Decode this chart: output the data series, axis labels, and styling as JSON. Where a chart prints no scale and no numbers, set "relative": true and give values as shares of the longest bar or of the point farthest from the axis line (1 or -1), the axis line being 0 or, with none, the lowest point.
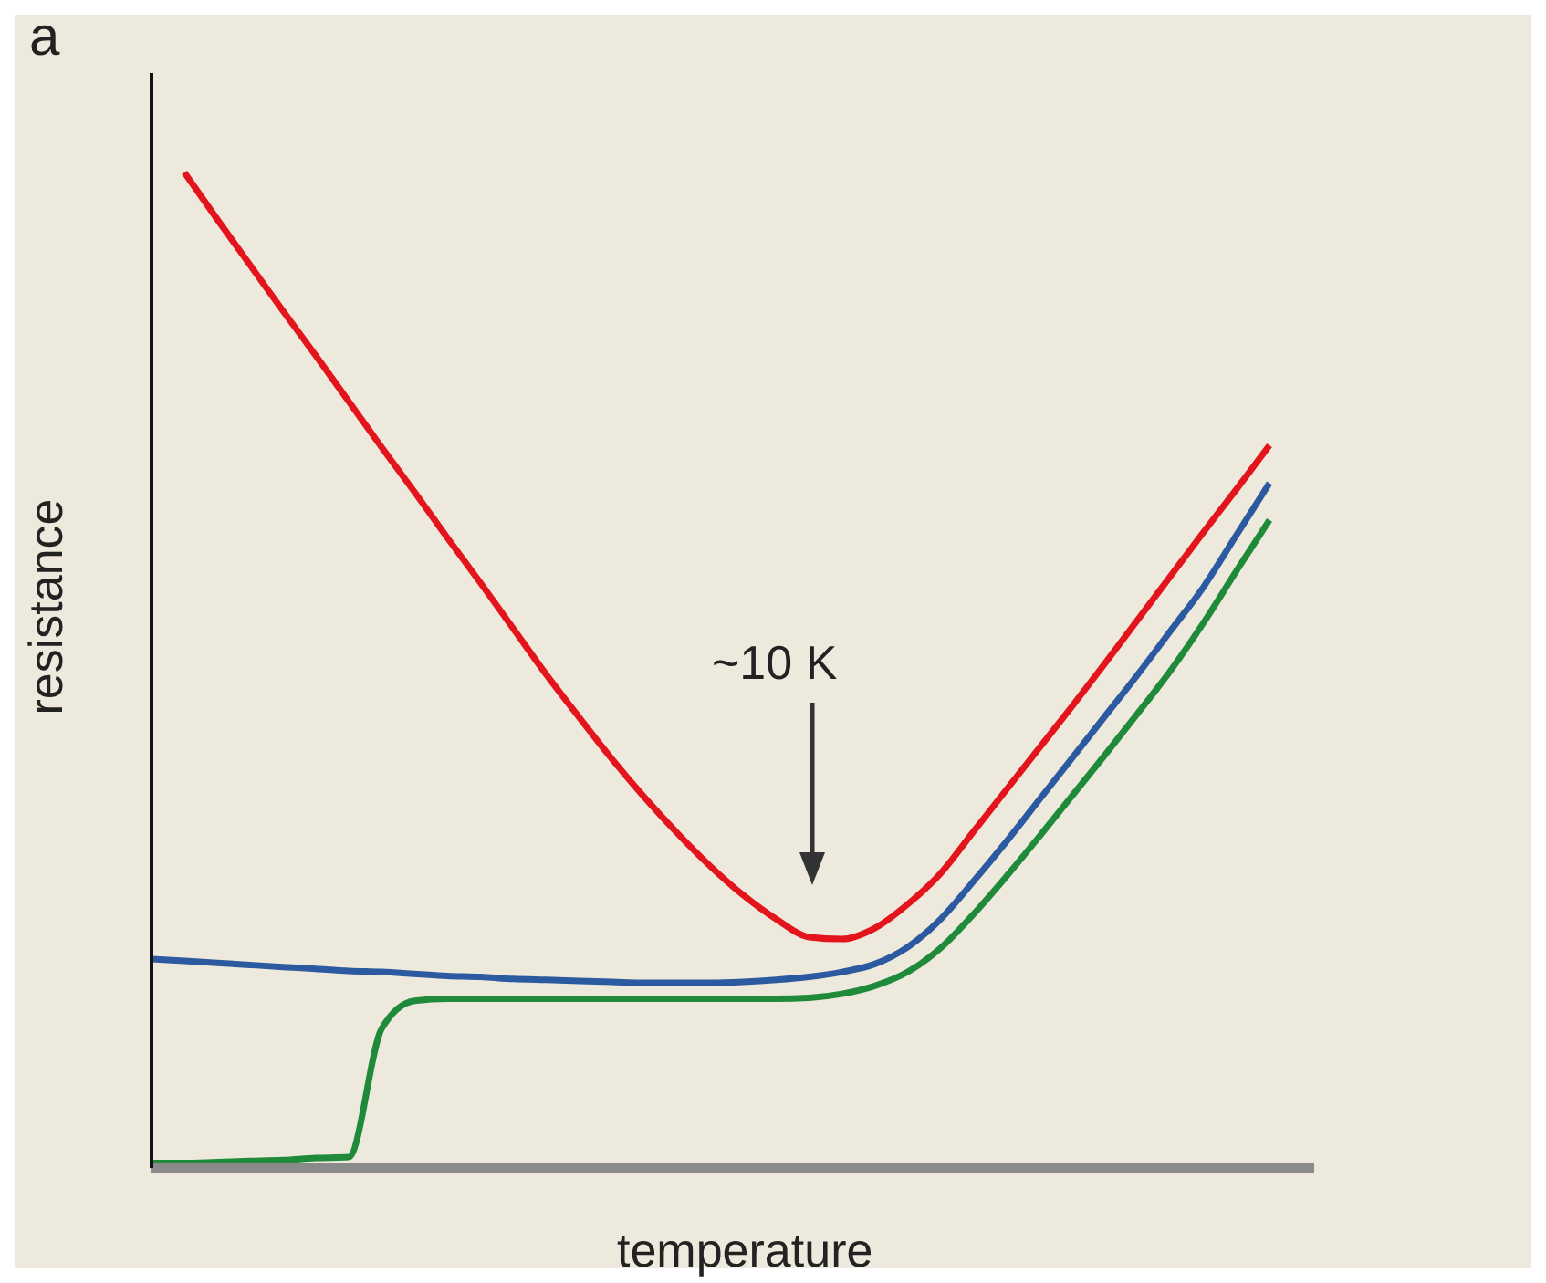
{
  "chart_data": {
    "type": "line",
    "relative": true,
    "title": "a",
    "xlabel": "temperature",
    "ylabel": "resistance",
    "annotations": [
      "~10 K"
    ],
    "categories": [
      null,
      null,
      null,
      null,
      null,
      null,
      null,
      null,
      null,
      null,
      null,
      null,
      null,
      null,
      null,
      null,
      null,
      null,
      null,
      null,
      null,
      null,
      null,
      null,
      null,
      null,
      null,
      null,
      null,
      null,
      null,
      null,
      null,
      null,
      null
    ],
    "series": [
      {
        "color": "#e3141c",
        "values": [
          null,
          1.0,
          0.953,
          0.907,
          0.861,
          0.816,
          0.77,
          0.724,
          0.679,
          0.633,
          0.588,
          0.542,
          0.496,
          0.453,
          0.411,
          0.372,
          0.336,
          0.303,
          0.274,
          0.25,
          0.232,
          0.23,
          0.241,
          0.265,
          0.296,
          0.338,
          0.38,
          0.422,
          0.464,
          0.507,
          0.551,
          0.595,
          0.639,
          0.682,
          0.726
        ]
      },
      {
        "color": "#2b5aa0",
        "values": [
          0.21,
          0.208,
          0.206,
          0.204,
          0.202,
          0.2,
          0.198,
          0.197,
          0.195,
          0.193,
          0.192,
          0.19,
          0.189,
          0.188,
          0.187,
          0.186,
          0.186,
          0.186,
          0.187,
          0.189,
          0.192,
          0.197,
          0.205,
          0.222,
          0.25,
          0.288,
          0.328,
          0.37,
          0.412,
          0.454,
          0.496,
          0.54,
          0.584,
          0.636,
          0.688
        ]
      },
      {
        "color": "#1e8a3a",
        "values": [
          0.005,
          0.005,
          0.006,
          0.007,
          0.008,
          0.01,
          0.011,
          0.14,
          0.168,
          0.17,
          0.17,
          0.17,
          0.17,
          0.17,
          0.17,
          0.17,
          0.17,
          0.17,
          0.17,
          0.17,
          0.171,
          0.175,
          0.183,
          0.197,
          0.221,
          0.255,
          0.293,
          0.333,
          0.374,
          0.415,
          0.457,
          0.5,
          0.548,
          0.6,
          0.651
        ]
      }
    ],
    "grid": false,
    "marker": "none",
    "line_style": "solid"
  }
}
